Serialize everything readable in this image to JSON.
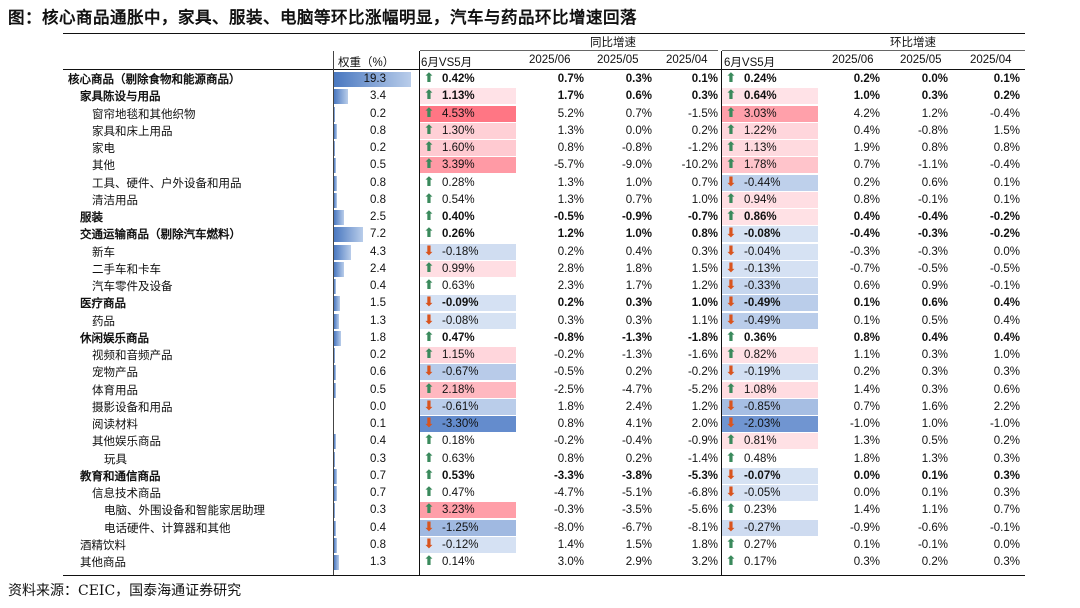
{
  "title": "图：核心商品通胀中，家具、服装、电脑等环比涨幅明显，汽车与药品环比增速回落",
  "source": "资料来源：CEIC，国泰海通证券研究",
  "header": {
    "weight": "权重（%）",
    "yoy_group": "同比增速",
    "mom_group": "环比增速",
    "col_vs": "6月VS5月",
    "col_0": "2025/06",
    "col_1": "2025/05",
    "col_2": "2025/04"
  },
  "colors": {
    "up": "#3a8a5c",
    "down": "#d9541e"
  },
  "rows": [
    {
      "label": "核心商品（剔除食物和能源商品）",
      "indent": 0,
      "bold": true,
      "weight": 19.3,
      "weight_text": "19.3",
      "yoy": {
        "dir": "up",
        "val": "0.42%",
        "heat": 0.0,
        "vals": [
          "0.7%",
          "0.3%",
          "0.1%"
        ]
      },
      "mom": {
        "dir": "up",
        "val": "0.24%",
        "heat": 0.0,
        "vals": [
          "0.2%",
          "0.0%",
          "0.1%"
        ]
      }
    },
    {
      "label": "家具陈设与用品",
      "indent": 1,
      "bold": true,
      "weight": 3.4,
      "weight_text": "3.4",
      "yoy": {
        "dir": "up",
        "val": "1.13%",
        "heat": 0.05,
        "vals": [
          "1.7%",
          "0.6%",
          "0.3%"
        ]
      },
      "mom": {
        "dir": "up",
        "val": "0.64%",
        "heat": 0.05,
        "vals": [
          "1.0%",
          "0.3%",
          "0.2%"
        ]
      }
    },
    {
      "label": "窗帘地毯和其他织物",
      "indent": 2,
      "bold": false,
      "weight": 0.2,
      "weight_text": "0.2",
      "yoy": {
        "dir": "up",
        "val": "4.53%",
        "heat": 0.95,
        "vals": [
          "5.2%",
          "0.7%",
          "-1.5%"
        ]
      },
      "mom": {
        "dir": "up",
        "val": "3.03%",
        "heat": 0.6,
        "vals": [
          "4.2%",
          "1.2%",
          "-0.4%"
        ]
      }
    },
    {
      "label": "家具和床上用品",
      "indent": 2,
      "bold": false,
      "weight": 0.8,
      "weight_text": "0.8",
      "yoy": {
        "dir": "up",
        "val": "1.30%",
        "heat": 0.2,
        "vals": [
          "1.3%",
          "0.0%",
          "0.2%"
        ]
      },
      "mom": {
        "dir": "up",
        "val": "1.22%",
        "heat": 0.15,
        "vals": [
          "0.4%",
          "-0.8%",
          "1.5%"
        ]
      }
    },
    {
      "label": "家电",
      "indent": 2,
      "bold": false,
      "weight": 0.2,
      "weight_text": "0.2",
      "yoy": {
        "dir": "up",
        "val": "1.60%",
        "heat": 0.25,
        "vals": [
          "0.8%",
          "-0.8%",
          "-1.2%"
        ]
      },
      "mom": {
        "dir": "up",
        "val": "1.13%",
        "heat": 0.12,
        "vals": [
          "1.9%",
          "0.8%",
          "0.8%"
        ]
      }
    },
    {
      "label": "其他",
      "indent": 2,
      "bold": false,
      "weight": 0.5,
      "weight_text": "0.5",
      "yoy": {
        "dir": "up",
        "val": "3.39%",
        "heat": 0.65,
        "vals": [
          "-5.7%",
          "-9.0%",
          "-10.2%"
        ]
      },
      "mom": {
        "dir": "up",
        "val": "1.78%",
        "heat": 0.3,
        "vals": [
          "0.7%",
          "-1.1%",
          "-0.4%"
        ]
      }
    },
    {
      "label": "工具、硬件、户外设备和用品",
      "indent": 2,
      "bold": false,
      "weight": 0.8,
      "weight_text": "0.8",
      "yoy": {
        "dir": "up",
        "val": "0.28%",
        "heat": 0.0,
        "vals": [
          "1.3%",
          "1.0%",
          "0.7%"
        ]
      },
      "mom": {
        "dir": "down",
        "val": "-0.44%",
        "heat": -0.25,
        "vals": [
          "0.2%",
          "0.6%",
          "0.1%"
        ]
      }
    },
    {
      "label": "清洁用品",
      "indent": 2,
      "bold": false,
      "weight": 0.8,
      "weight_text": "0.8",
      "yoy": {
        "dir": "up",
        "val": "0.54%",
        "heat": 0.0,
        "vals": [
          "1.3%",
          "0.7%",
          "1.0%"
        ]
      },
      "mom": {
        "dir": "up",
        "val": "0.94%",
        "heat": 0.08,
        "vals": [
          "0.8%",
          "-0.1%",
          "0.1%"
        ]
      }
    },
    {
      "label": "服装",
      "indent": 1,
      "bold": true,
      "weight": 2.5,
      "weight_text": "2.5",
      "yoy": {
        "dir": "up",
        "val": "0.40%",
        "heat": 0.0,
        "vals": [
          "-0.5%",
          "-0.9%",
          "-0.7%"
        ]
      },
      "mom": {
        "dir": "up",
        "val": "0.86%",
        "heat": 0.06,
        "vals": [
          "0.4%",
          "-0.4%",
          "-0.2%"
        ]
      }
    },
    {
      "label": "交通运输商品（剔除汽车燃料）",
      "indent": 1,
      "bold": true,
      "weight": 7.2,
      "weight_text": "7.2",
      "yoy": {
        "dir": "up",
        "val": "0.26%",
        "heat": 0.0,
        "vals": [
          "1.2%",
          "1.0%",
          "0.8%"
        ]
      },
      "mom": {
        "dir": "down",
        "val": "-0.08%",
        "heat": -0.05,
        "vals": [
          "-0.4%",
          "-0.3%",
          "-0.2%"
        ]
      }
    },
    {
      "label": "新车",
      "indent": 2,
      "bold": false,
      "weight": 4.3,
      "weight_text": "4.3",
      "yoy": {
        "dir": "down",
        "val": "-0.18%",
        "heat": -0.1,
        "vals": [
          "0.2%",
          "0.4%",
          "0.3%"
        ]
      },
      "mom": {
        "dir": "down",
        "val": "-0.04%",
        "heat": -0.05,
        "vals": [
          "-0.3%",
          "-0.3%",
          "0.0%"
        ]
      }
    },
    {
      "label": "二手车和卡车",
      "indent": 2,
      "bold": false,
      "weight": 2.4,
      "weight_text": "2.4",
      "yoy": {
        "dir": "up",
        "val": "0.99%",
        "heat": 0.08,
        "vals": [
          "2.8%",
          "1.8%",
          "1.5%"
        ]
      },
      "mom": {
        "dir": "down",
        "val": "-0.13%",
        "heat": -0.06,
        "vals": [
          "-0.7%",
          "-0.5%",
          "-0.5%"
        ]
      }
    },
    {
      "label": "汽车零件及设备",
      "indent": 2,
      "bold": false,
      "weight": 0.4,
      "weight_text": "0.4",
      "yoy": {
        "dir": "up",
        "val": "0.63%",
        "heat": 0.0,
        "vals": [
          "2.3%",
          "1.7%",
          "1.2%"
        ]
      },
      "mom": {
        "dir": "down",
        "val": "-0.33%",
        "heat": -0.18,
        "vals": [
          "0.6%",
          "0.9%",
          "-0.1%"
        ]
      }
    },
    {
      "label": "医疗商品",
      "indent": 1,
      "bold": true,
      "weight": 1.5,
      "weight_text": "1.5",
      "yoy": {
        "dir": "down",
        "val": "-0.09%",
        "heat": -0.06,
        "vals": [
          "0.2%",
          "0.3%",
          "1.0%"
        ]
      },
      "mom": {
        "dir": "down",
        "val": "-0.49%",
        "heat": -0.28,
        "vals": [
          "0.1%",
          "0.6%",
          "0.4%"
        ]
      }
    },
    {
      "label": "药品",
      "indent": 2,
      "bold": false,
      "weight": 1.3,
      "weight_text": "1.3",
      "yoy": {
        "dir": "down",
        "val": "-0.08%",
        "heat": -0.05,
        "vals": [
          "0.3%",
          "0.3%",
          "1.1%"
        ]
      },
      "mom": {
        "dir": "down",
        "val": "-0.49%",
        "heat": -0.28,
        "vals": [
          "0.1%",
          "0.5%",
          "0.4%"
        ]
      }
    },
    {
      "label": "休闲娱乐商品",
      "indent": 1,
      "bold": true,
      "weight": 1.8,
      "weight_text": "1.8",
      "yoy": {
        "dir": "up",
        "val": "0.47%",
        "heat": 0.0,
        "vals": [
          "-0.8%",
          "-1.3%",
          "-1.8%"
        ]
      },
      "mom": {
        "dir": "up",
        "val": "0.36%",
        "heat": 0.0,
        "vals": [
          "0.8%",
          "0.4%",
          "0.4%"
        ]
      }
    },
    {
      "label": "视频和音频产品",
      "indent": 2,
      "bold": false,
      "weight": 0.2,
      "weight_text": "0.2",
      "yoy": {
        "dir": "up",
        "val": "1.15%",
        "heat": 0.15,
        "vals": [
          "-0.2%",
          "-1.3%",
          "-1.6%"
        ]
      },
      "mom": {
        "dir": "up",
        "val": "0.82%",
        "heat": 0.06,
        "vals": [
          "1.1%",
          "0.3%",
          "1.0%"
        ]
      }
    },
    {
      "label": "宠物产品",
      "indent": 2,
      "bold": false,
      "weight": 0.6,
      "weight_text": "0.6",
      "yoy": {
        "dir": "down",
        "val": "-0.67%",
        "heat": -0.3,
        "vals": [
          "-0.5%",
          "0.2%",
          "-0.2%"
        ]
      },
      "mom": {
        "dir": "down",
        "val": "-0.19%",
        "heat": -0.08,
        "vals": [
          "0.2%",
          "0.3%",
          "0.3%"
        ]
      }
    },
    {
      "label": "体育用品",
      "indent": 2,
      "bold": false,
      "weight": 0.5,
      "weight_text": "0.5",
      "yoy": {
        "dir": "up",
        "val": "2.18%",
        "heat": 0.4,
        "vals": [
          "-2.5%",
          "-4.7%",
          "-5.2%"
        ]
      },
      "mom": {
        "dir": "up",
        "val": "1.08%",
        "heat": 0.1,
        "vals": [
          "1.4%",
          "0.3%",
          "0.6%"
        ]
      }
    },
    {
      "label": "摄影设备和用品",
      "indent": 2,
      "bold": false,
      "weight": 0.0,
      "weight_text": "0.0",
      "yoy": {
        "dir": "down",
        "val": "-0.61%",
        "heat": -0.28,
        "vals": [
          "1.8%",
          "2.4%",
          "1.2%"
        ]
      },
      "mom": {
        "dir": "down",
        "val": "-0.85%",
        "heat": -0.45,
        "vals": [
          "0.7%",
          "1.6%",
          "2.2%"
        ]
      }
    },
    {
      "label": "阅读材料",
      "indent": 2,
      "bold": false,
      "weight": 0.1,
      "weight_text": "0.1",
      "yoy": {
        "dir": "down",
        "val": "-3.30%",
        "heat": -1.0,
        "vals": [
          "0.8%",
          "4.1%",
          "2.0%"
        ]
      },
      "mom": {
        "dir": "down",
        "val": "-2.03%",
        "heat": -0.9,
        "vals": [
          "-1.0%",
          "1.0%",
          "-1.0%"
        ]
      }
    },
    {
      "label": "其他娱乐商品",
      "indent": 2,
      "bold": false,
      "weight": 0.4,
      "weight_text": "0.4",
      "yoy": {
        "dir": "up",
        "val": "0.18%",
        "heat": 0.0,
        "vals": [
          "-0.2%",
          "-0.4%",
          "-0.9%"
        ]
      },
      "mom": {
        "dir": "up",
        "val": "0.81%",
        "heat": 0.06,
        "vals": [
          "1.3%",
          "0.5%",
          "0.2%"
        ]
      }
    },
    {
      "label": "玩具",
      "indent": 3,
      "bold": false,
      "weight": 0.3,
      "weight_text": "0.3",
      "yoy": {
        "dir": "up",
        "val": "0.63%",
        "heat": 0.0,
        "vals": [
          "0.8%",
          "0.2%",
          "-1.4%"
        ]
      },
      "mom": {
        "dir": "up",
        "val": "0.48%",
        "heat": 0.0,
        "vals": [
          "1.8%",
          "1.3%",
          "0.3%"
        ]
      }
    },
    {
      "label": "教育和通信商品",
      "indent": 1,
      "bold": true,
      "weight": 0.7,
      "weight_text": "0.7",
      "yoy": {
        "dir": "up",
        "val": "0.53%",
        "heat": 0.0,
        "vals": [
          "-3.3%",
          "-3.8%",
          "-5.3%"
        ]
      },
      "mom": {
        "dir": "down",
        "val": "-0.07%",
        "heat": -0.05,
        "vals": [
          "0.0%",
          "0.1%",
          "0.3%"
        ]
      }
    },
    {
      "label": "信息技术商品",
      "indent": 2,
      "bold": false,
      "weight": 0.7,
      "weight_text": "0.7",
      "yoy": {
        "dir": "up",
        "val": "0.47%",
        "heat": 0.0,
        "vals": [
          "-4.7%",
          "-5.1%",
          "-6.8%"
        ]
      },
      "mom": {
        "dir": "down",
        "val": "-0.05%",
        "heat": -0.04,
        "vals": [
          "0.0%",
          "0.1%",
          "0.3%"
        ]
      }
    },
    {
      "label": "电脑、外围设备和智能家居助理",
      "indent": 3,
      "bold": false,
      "weight": 0.3,
      "weight_text": "0.3",
      "yoy": {
        "dir": "up",
        "val": "3.23%",
        "heat": 0.62,
        "vals": [
          "-0.3%",
          "-3.5%",
          "-5.6%"
        ]
      },
      "mom": {
        "dir": "up",
        "val": "0.23%",
        "heat": 0.0,
        "vals": [
          "1.4%",
          "1.1%",
          "0.7%"
        ]
      }
    },
    {
      "label": "电话硬件、计算器和其他",
      "indent": 3,
      "bold": false,
      "weight": 0.4,
      "weight_text": "0.4",
      "yoy": {
        "dir": "down",
        "val": "-1.25%",
        "heat": -0.5,
        "vals": [
          "-8.0%",
          "-6.7%",
          "-8.1%"
        ]
      },
      "mom": {
        "dir": "down",
        "val": "-0.27%",
        "heat": -0.12,
        "vals": [
          "-0.9%",
          "-0.6%",
          "-0.1%"
        ]
      }
    },
    {
      "label": "酒精饮料",
      "indent": 1,
      "bold": false,
      "weight": 0.8,
      "weight_text": "0.8",
      "yoy": {
        "dir": "down",
        "val": "-0.12%",
        "heat": -0.06,
        "vals": [
          "1.4%",
          "1.5%",
          "1.8%"
        ]
      },
      "mom": {
        "dir": "up",
        "val": "0.27%",
        "heat": 0.0,
        "vals": [
          "0.1%",
          "-0.1%",
          "0.0%"
        ]
      }
    },
    {
      "label": "其他商品",
      "indent": 1,
      "bold": false,
      "weight": 1.3,
      "weight_text": "1.3",
      "yoy": {
        "dir": "up",
        "val": "0.14%",
        "heat": 0.0,
        "vals": [
          "3.0%",
          "2.9%",
          "3.2%"
        ]
      },
      "mom": {
        "dir": "up",
        "val": "0.17%",
        "heat": 0.0,
        "vals": [
          "0.3%",
          "0.2%",
          "0.3%"
        ]
      }
    }
  ]
}
